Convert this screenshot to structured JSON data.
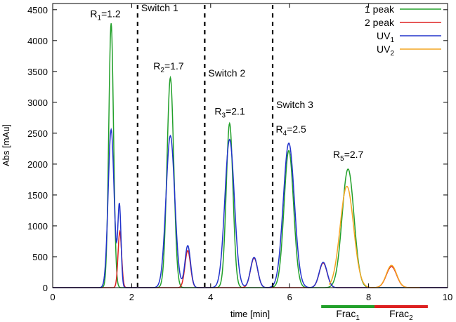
{
  "chart_data": {
    "type": "line",
    "xlabel": "time [min]",
    "ylabel": "Abs [mAu]",
    "xlim": [
      0,
      10
    ],
    "ylim": [
      0,
      4600
    ],
    "x_ticks": [
      0,
      2,
      4,
      6,
      8,
      10
    ],
    "y_ticks": [
      0,
      500,
      1000,
      1500,
      2000,
      2500,
      3000,
      3500,
      4000,
      4500
    ],
    "grid": false,
    "legend_position": "top-right",
    "series": [
      {
        "name": "1 peak",
        "name_main": "1 peak",
        "name_sub": "",
        "color": "#22a02a",
        "peaks": [
          {
            "center": 1.48,
            "height": 4280,
            "width": 0.06
          },
          {
            "center": 2.98,
            "height": 3400,
            "width": 0.085
          },
          {
            "center": 4.48,
            "height": 2660,
            "width": 0.085
          },
          {
            "center": 5.98,
            "height": 2220,
            "width": 0.12
          },
          {
            "center": 7.48,
            "height": 1920,
            "width": 0.15
          }
        ]
      },
      {
        "name": "2 peak",
        "name_main": "2 peak",
        "name_sub": "",
        "color": "#dd2020",
        "peaks": [
          {
            "center": 1.7,
            "height": 910,
            "width": 0.045
          },
          {
            "center": 3.42,
            "height": 600,
            "width": 0.07
          },
          {
            "center": 5.1,
            "height": 480,
            "width": 0.09
          },
          {
            "center": 6.85,
            "height": 400,
            "width": 0.1
          },
          {
            "center": 8.58,
            "height": 340,
            "width": 0.13
          }
        ]
      },
      {
        "name": "UV1",
        "name_main": "UV",
        "name_sub": "1",
        "color": "#2233cc",
        "peaks": [
          {
            "center": 1.48,
            "height": 2560,
            "width": 0.075
          },
          {
            "center": 1.69,
            "height": 1320,
            "width": 0.04
          },
          {
            "center": 2.98,
            "height": 2460,
            "width": 0.11
          },
          {
            "center": 3.42,
            "height": 680,
            "width": 0.07
          },
          {
            "center": 4.48,
            "height": 2400,
            "width": 0.12
          },
          {
            "center": 5.1,
            "height": 490,
            "width": 0.09
          },
          {
            "center": 5.98,
            "height": 2340,
            "width": 0.14
          },
          {
            "center": 6.85,
            "height": 410,
            "width": 0.1
          }
        ]
      },
      {
        "name": "UV2",
        "name_main": "UV",
        "name_sub": "2",
        "color": "#f4a521",
        "peaks": [
          {
            "center": 7.45,
            "height": 1640,
            "width": 0.17
          },
          {
            "center": 8.58,
            "height": 360,
            "width": 0.13
          }
        ],
        "x_range": [
          7.0,
          9.3
        ]
      }
    ],
    "switches": [
      {
        "x": 2.15,
        "label": "Switch 1"
      },
      {
        "x": 3.85,
        "label": "Switch 2"
      },
      {
        "x": 5.57,
        "label": "Switch 3"
      }
    ],
    "resolution_labels": [
      {
        "main": "R",
        "sub": "1",
        "value": "=1.2",
        "x": 0.95,
        "y": 4380
      },
      {
        "main": "R",
        "sub": "2",
        "value": "=1.7",
        "x": 2.55,
        "y": 3530
      },
      {
        "main": "R",
        "sub": "3",
        "value": "=2.1",
        "x": 4.1,
        "y": 2800
      },
      {
        "main": "R",
        "sub": "4",
        "value": "=2.5",
        "x": 5.65,
        "y": 2510
      },
      {
        "main": "R",
        "sub": "5",
        "value": "=2.7",
        "x": 7.1,
        "y": 2100
      }
    ],
    "fractions": [
      {
        "main": "Frac",
        "sub": "1",
        "x_start": 6.8,
        "x_end": 8.15,
        "color": "#22a02a"
      },
      {
        "main": "Frac",
        "sub": "2",
        "x_start": 8.15,
        "x_end": 9.5,
        "color": "#dd2020"
      }
    ]
  }
}
